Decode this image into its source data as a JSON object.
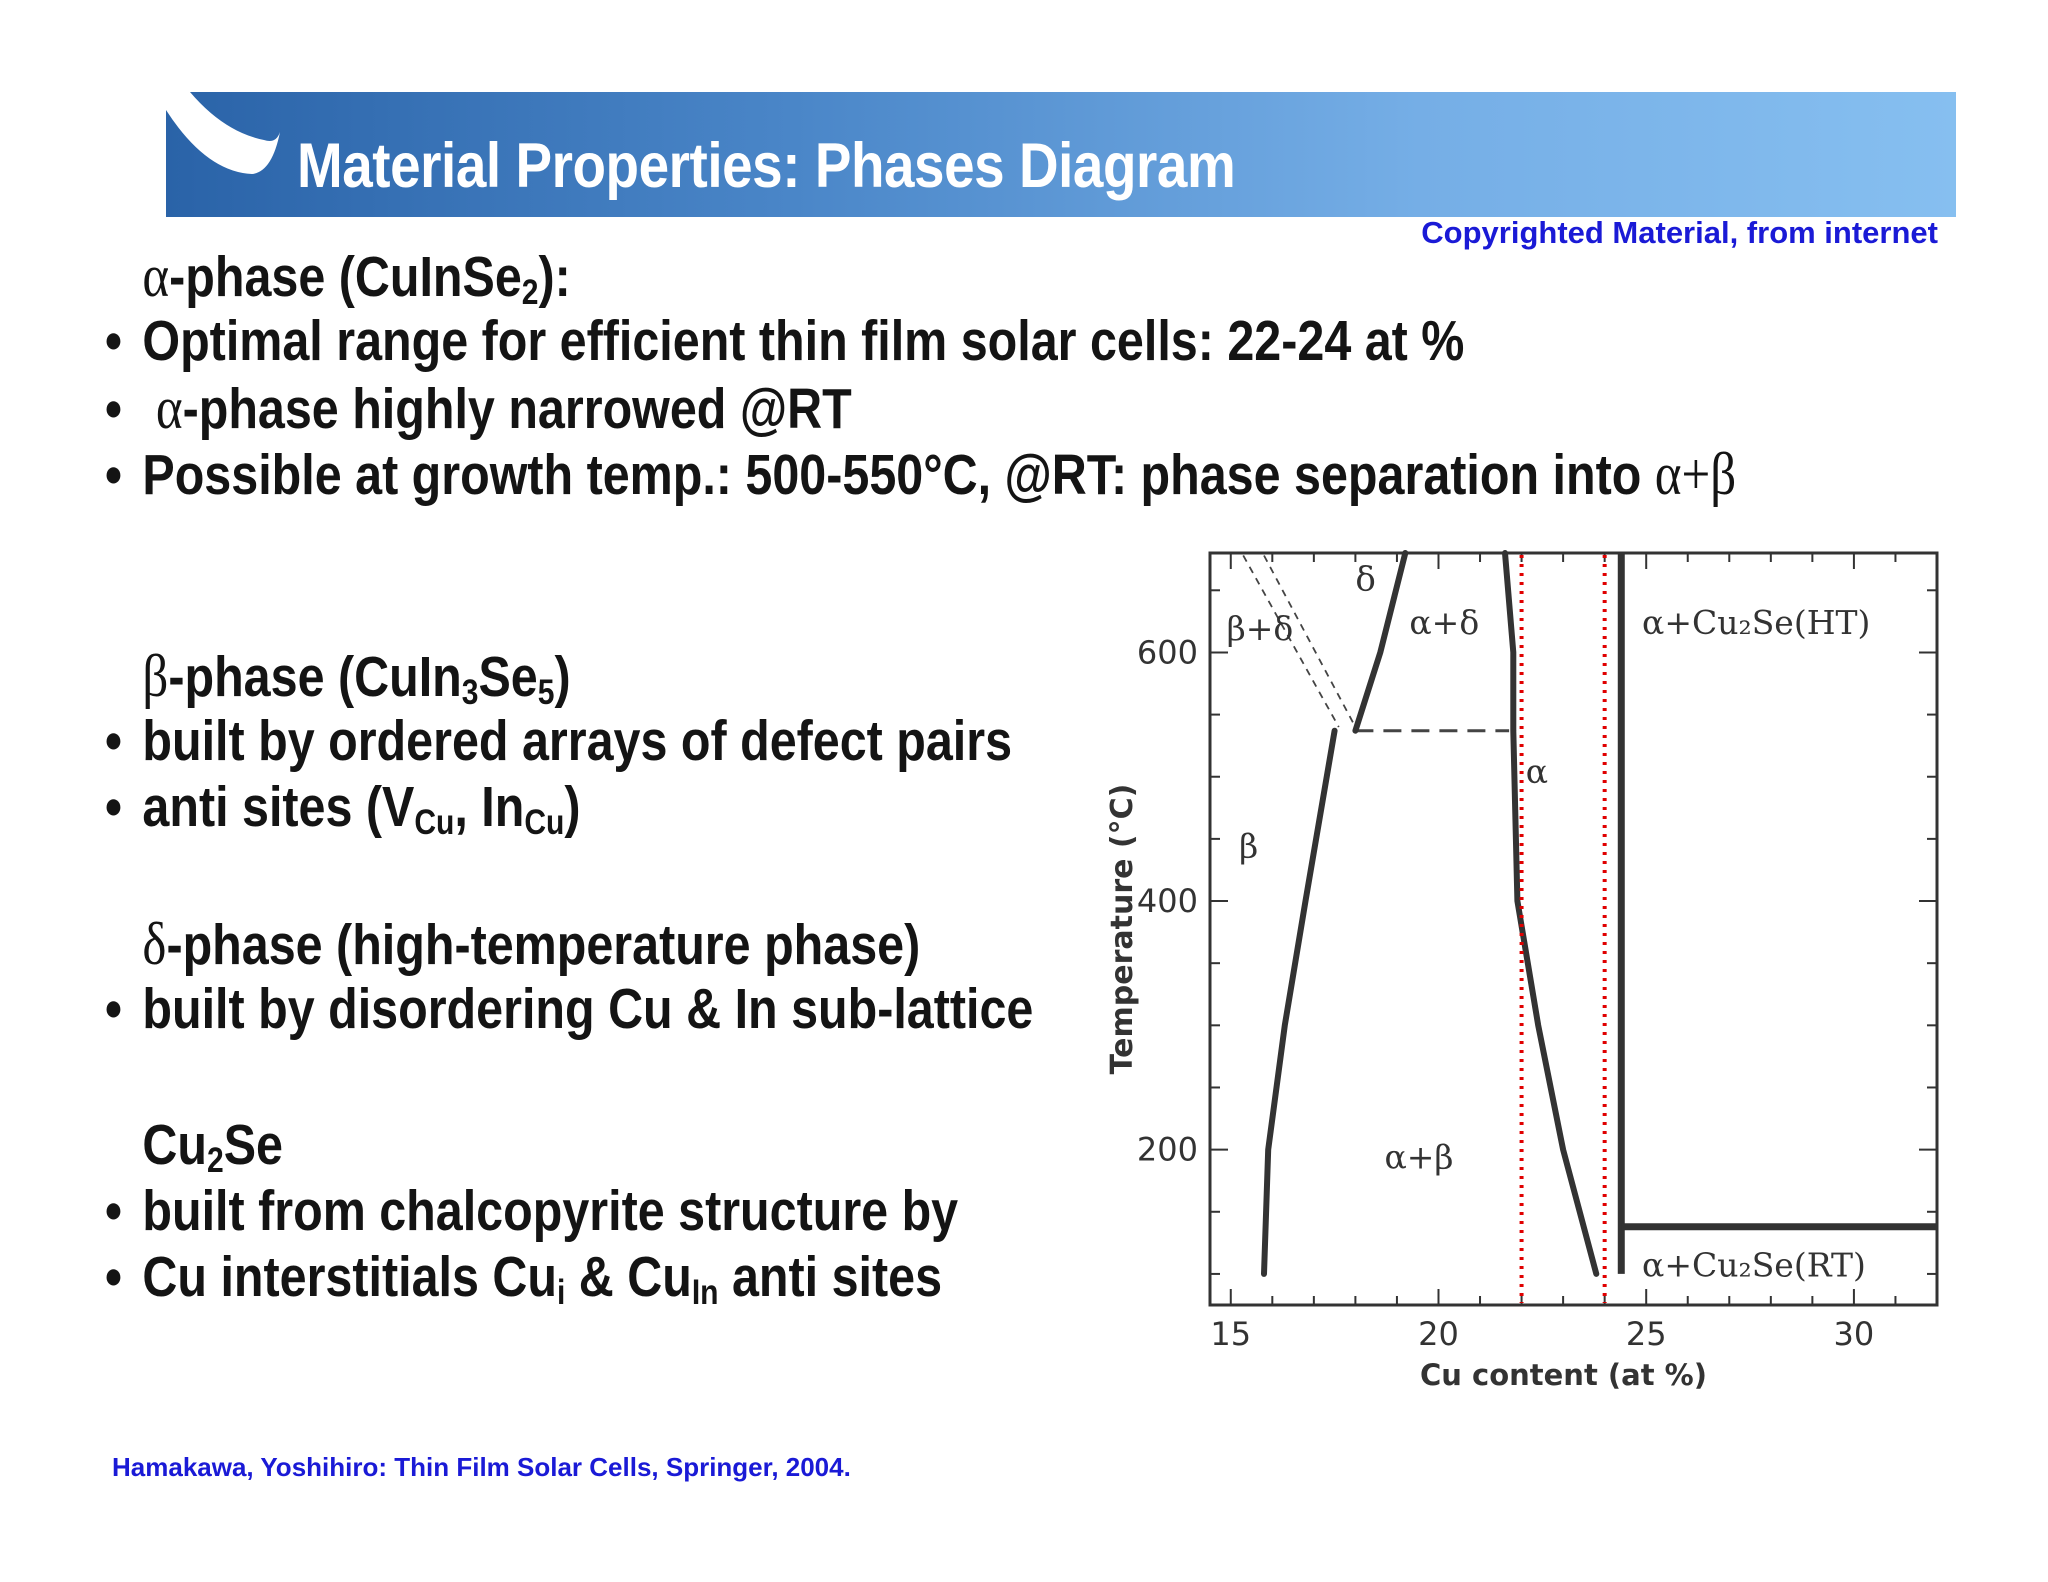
{
  "slide": {
    "title": "Material Properties: Phases Diagram",
    "copyright_note": "Copyrighted Material, from internet",
    "reference": "Hamakawa, Yoshihiro: Thin Film Solar Cells, Springer, 2004."
  },
  "alpha_section": {
    "symbol": "α",
    "heading_text": "-phase (CuInSe",
    "heading_sub": "2",
    "heading_end": "):",
    "bullet_1": "Optimal range for efficient thin film solar cells: 22-24 at %",
    "bullet_2_symbol": "α",
    "bullet_2_text": "-phase highly narrowed @RT",
    "bullet_3_text": "Possible at growth temp.: 500-550°C, @RT: phase separation into ",
    "bullet_3_symbol": "α+β"
  },
  "beta_section": {
    "symbol": "β",
    "heading_text": "-phase (CuIn",
    "heading_sub_1": "3",
    "heading_mid": "Se",
    "heading_sub_2": "5",
    "heading_end": ")",
    "bullet_1": "built by ordered arrays of defect pairs",
    "bullet_2_text": "anti sites (V",
    "bullet_2_sub_1": "Cu",
    "bullet_2_mid": ", In",
    "bullet_2_sub_2": "Cu",
    "bullet_2_end": ")"
  },
  "delta_section": {
    "symbol": "δ",
    "heading_text": "-phase (high-temperature phase)",
    "bullet_1": "built by disordering Cu & In sub-lattice"
  },
  "cu2se_section": {
    "heading_text": "Cu",
    "heading_sub": "2",
    "heading_end": "Se",
    "bullet_1": "built from chalcopyrite structure by",
    "bullet_2_text": "Cu interstitials Cu",
    "bullet_2_sub_1": "i",
    "bullet_2_mid": " & Cu",
    "bullet_2_sub_2": "In",
    "bullet_2_end": " anti sites"
  },
  "bullet_char": "•",
  "diagram": {
    "x_axis_label": "Cu content (at %)",
    "y_axis_label": "Temperature (°C)",
    "x_ticks": [
      "15",
      "20",
      "25",
      "30"
    ],
    "y_ticks": [
      "600",
      "400",
      "200"
    ],
    "x_range": [
      14.5,
      32
    ],
    "y_range": [
      75,
      680
    ],
    "regions": {
      "delta": "δ",
      "beta_delta": "β+δ",
      "alpha_delta": "α+δ",
      "alpha": "α",
      "beta": "β",
      "alpha_beta": "α+β",
      "alpha_cu2se_ht": "α+Cu₂Se(HT)",
      "alpha_cu2se_rt": "α+Cu₂Se(RT)"
    },
    "highlight_lines_at_pct": [
      22,
      24
    ],
    "highlight_color": "#e00000",
    "eutectoid_temperature_c": 537,
    "boundaries": {
      "beta_left": [
        [
          15.8,
          100
        ],
        [
          15.9,
          200
        ],
        [
          16.3,
          300
        ],
        [
          16.8,
          400
        ],
        [
          17.5,
          537
        ]
      ],
      "delta_right": [
        [
          18.0,
          537
        ],
        [
          18.6,
          600
        ],
        [
          19.2,
          680
        ]
      ],
      "alpha_left": [
        [
          21.6,
          680
        ],
        [
          21.8,
          600
        ],
        [
          21.8,
          537
        ],
        [
          21.9,
          400
        ],
        [
          22.4,
          300
        ],
        [
          23.0,
          200
        ],
        [
          23.8,
          100
        ]
      ],
      "cu2se_wall_pct": 24.4,
      "rt_ht_transition_c": 138
    }
  }
}
